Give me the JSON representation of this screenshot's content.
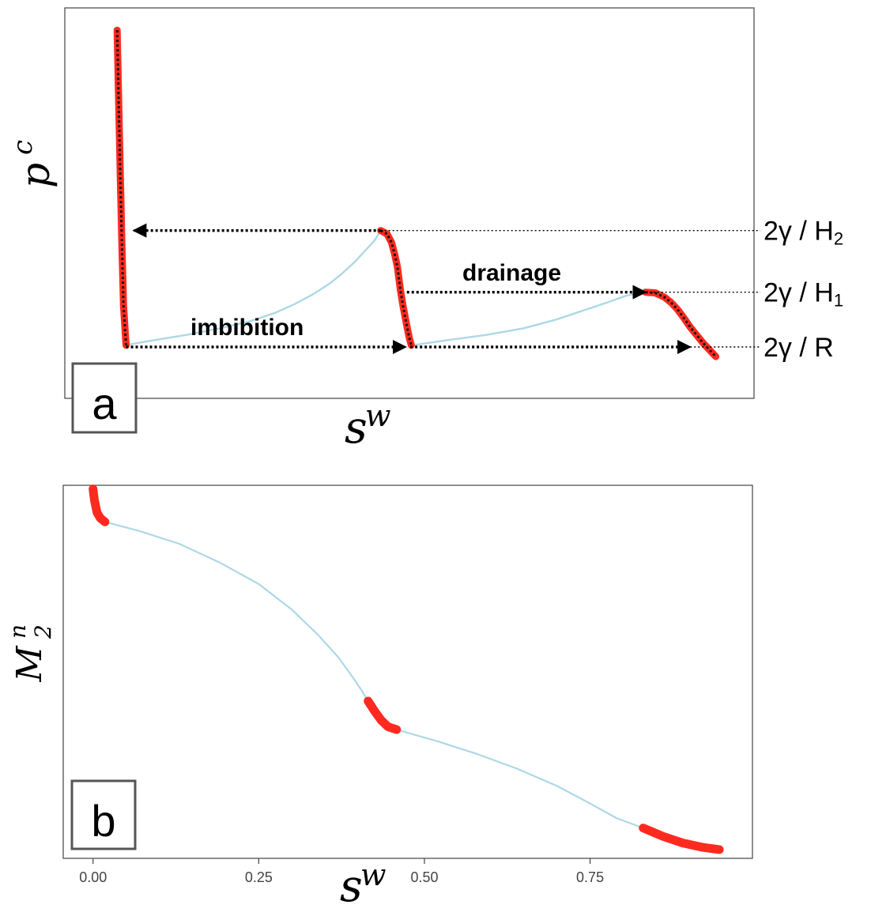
{
  "chart_data": [
    {
      "panel": "a",
      "type": "line",
      "xlabel": "s^w",
      "ylabel": "p^c",
      "xlim": [
        -0.08,
        1.0
      ],
      "ylim": [
        -0.14,
        1.0
      ],
      "grid": false,
      "axis_ticks_shown": false,
      "series": [
        {
          "name": "primary curve (light blue)",
          "color": "#add8e6",
          "x": [
            0.015,
            0.06,
            0.11,
            0.16,
            0.21,
            0.25,
            0.28,
            0.31,
            0.335,
            0.355,
            0.375,
            0.39,
            0.405,
            0.415
          ],
          "y": [
            0.015,
            0.03,
            0.045,
            0.063,
            0.085,
            0.11,
            0.135,
            0.165,
            0.195,
            0.225,
            0.26,
            0.29,
            0.32,
            0.35
          ]
        },
        {
          "name": "primary curve segment 2 (light blue)",
          "color": "#add8e6",
          "x": [
            0.465,
            0.52,
            0.58,
            0.64,
            0.69,
            0.73,
            0.77,
            0.8,
            0.83
          ],
          "y": [
            0.015,
            0.03,
            0.045,
            0.065,
            0.09,
            0.115,
            0.14,
            0.16,
            0.17
          ]
        },
        {
          "name": "red segment 1",
          "color": "#ff2a1f",
          "x": [
            0.002,
            0.0045,
            0.007,
            0.0095,
            0.012,
            0.016
          ],
          "y": [
            0.935,
            0.72,
            0.51,
            0.3,
            0.13,
            0.015
          ]
        },
        {
          "name": "red segment 2",
          "color": "#ff2a1f",
          "x": [
            0.415,
            0.425,
            0.432,
            0.437,
            0.441,
            0.446,
            0.45,
            0.455,
            0.46,
            0.463
          ],
          "y": [
            0.35,
            0.34,
            0.315,
            0.28,
            0.245,
            0.175,
            0.13,
            0.08,
            0.035,
            0.015
          ]
        },
        {
          "name": "red segment 3",
          "color": "#ff2a1f",
          "x": [
            0.83,
            0.845,
            0.86,
            0.87,
            0.88,
            0.89,
            0.9,
            0.91,
            0.92,
            0.93,
            0.94
          ],
          "y": [
            0.17,
            0.168,
            0.155,
            0.14,
            0.12,
            0.095,
            0.068,
            0.045,
            0.022,
            0.002,
            -0.018
          ]
        }
      ],
      "reference_levels": [
        {
          "label": "2γ / H",
          "subscript": "2",
          "y": 0.35
        },
        {
          "label": "2γ / H",
          "subscript": "1",
          "y": 0.17
        },
        {
          "label": "2γ / R",
          "subscript": "",
          "y": 0.01
        }
      ],
      "annotations": [
        {
          "text": "drainage",
          "x_from": 0.456,
          "x_to": 0.83,
          "y": 0.17,
          "direction": "left"
        },
        {
          "text": "imbibition",
          "x_from": 0.016,
          "x_to": 0.454,
          "y": 0.01,
          "direction": "right",
          "continues_to": 0.9
        },
        {
          "text": "",
          "x_from": 0.415,
          "x_to": 0.028,
          "y": 0.35,
          "direction": "left"
        }
      ],
      "panel_label": "a"
    },
    {
      "panel": "b",
      "type": "line",
      "xlabel": "s^w",
      "ylabel": "M_2^n",
      "xlim": [
        -0.045,
        0.995
      ],
      "ylim": [
        -0.02,
        1.0
      ],
      "grid": false,
      "xticks": [
        0.0,
        0.25,
        0.5,
        0.75
      ],
      "xtick_labels": [
        "0.00",
        "0.25",
        "0.50",
        "0.75"
      ],
      "series": [
        {
          "name": "primary curve (light blue)",
          "color": "#add8e6",
          "x": [
            0.018,
            0.07,
            0.13,
            0.19,
            0.25,
            0.3,
            0.34,
            0.37,
            0.39,
            0.405,
            0.415
          ],
          "y": [
            0.9,
            0.875,
            0.84,
            0.79,
            0.73,
            0.66,
            0.59,
            0.53,
            0.48,
            0.44,
            0.41
          ]
        },
        {
          "name": "primary curve segment 2 (light blue)",
          "color": "#add8e6",
          "x": [
            0.458,
            0.52,
            0.58,
            0.64,
            0.7,
            0.75,
            0.79,
            0.83
          ],
          "y": [
            0.332,
            0.3,
            0.265,
            0.225,
            0.178,
            0.13,
            0.09,
            0.063
          ]
        },
        {
          "name": "red segment 1",
          "color": "#ff2a1f",
          "x": [
            0.0,
            0.002,
            0.006,
            0.011,
            0.018
          ],
          "y": [
            0.99,
            0.96,
            0.925,
            0.91,
            0.9
          ]
        },
        {
          "name": "red segment 2",
          "color": "#ff2a1f",
          "x": [
            0.415,
            0.425,
            0.435,
            0.445,
            0.458
          ],
          "y": [
            0.41,
            0.382,
            0.357,
            0.34,
            0.332
          ]
        },
        {
          "name": "red segment 3",
          "color": "#ff2a1f",
          "x": [
            0.83,
            0.86,
            0.89,
            0.92,
            0.945
          ],
          "y": [
            0.063,
            0.04,
            0.022,
            0.01,
            0.004
          ]
        }
      ],
      "panel_label": "b"
    }
  ]
}
